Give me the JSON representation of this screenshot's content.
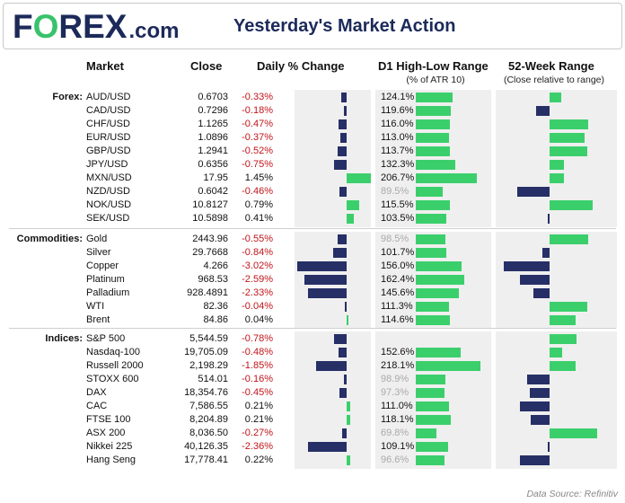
{
  "header": {
    "logo_text": [
      "F",
      "O",
      "REX"
    ],
    "logo_suffix": ".com",
    "title": "Yesterday's Market Action"
  },
  "columns": {
    "market": "Market",
    "close": "Close",
    "daily": "Daily % Change",
    "range": "D1 High-Low Range",
    "range_sub": "(% of ATR 10)",
    "week52": "52-Week Range",
    "week52_sub": "(Close relative to range)"
  },
  "colors": {
    "negative_bar": "#262f66",
    "positive_bar": "#3bcf6c",
    "negative_text": "#c0151b",
    "muted_text": "#aaaaaa",
    "brand": "#1c2a5a"
  },
  "scales": {
    "daily_pct_range": [
      -4,
      2.5
    ],
    "atr_pct_range": [
      0,
      250
    ],
    "week52_range": [
      -1,
      1
    ]
  },
  "chart_data": {
    "type": "table",
    "sections": [
      {
        "name": "Forex:",
        "rows": [
          {
            "market": "AUD/USD",
            "close": "0.6703",
            "change": "-0.33%",
            "change_value": -0.33,
            "range": "124.1%",
            "range_value": 124.1,
            "range_muted": false,
            "w52": 0.22
          },
          {
            "market": "CAD/USD",
            "close": "0.7296",
            "change": "-0.18%",
            "change_value": -0.18,
            "range": "119.6%",
            "range_value": 119.6,
            "range_muted": false,
            "w52": -0.25
          },
          {
            "market": "CHF/USD",
            "close": "1.1265",
            "change": "-0.47%",
            "change_value": -0.47,
            "range": "116.0%",
            "range_value": 116.0,
            "range_muted": false,
            "w52": 0.72
          },
          {
            "market": "EUR/USD",
            "close": "1.0896",
            "change": "-0.37%",
            "change_value": -0.37,
            "range": "113.0%",
            "range_value": 113.0,
            "range_muted": false,
            "w52": 0.65
          },
          {
            "market": "GBP/USD",
            "close": "1.2941",
            "change": "-0.52%",
            "change_value": -0.52,
            "range": "113.7%",
            "range_value": 113.7,
            "range_muted": false,
            "w52": 0.7
          },
          {
            "market": "JPY/USD",
            "close": "0.6356",
            "change": "-0.75%",
            "change_value": -0.75,
            "range": "132.3%",
            "range_value": 132.3,
            "range_muted": false,
            "w52": 0.27
          },
          {
            "market": "MXN/USD",
            "close": "17.95",
            "change": "1.45%",
            "change_value": 1.45,
            "range": "206.7%",
            "range_value": 206.7,
            "range_muted": false,
            "w52": 0.27
          },
          {
            "market": "NZD/USD",
            "close": "0.6042",
            "change": "-0.46%",
            "change_value": -0.46,
            "range": "89.5%",
            "range_value": 89.5,
            "range_muted": true,
            "w52": -0.6
          },
          {
            "market": "NOK/USD",
            "close": "10.8127",
            "change": "0.79%",
            "change_value": 0.79,
            "range": "115.5%",
            "range_value": 115.5,
            "range_muted": false,
            "w52": 0.8
          },
          {
            "market": "SEK/USD",
            "close": "10.5898",
            "change": "0.41%",
            "change_value": 0.41,
            "range": "103.5%",
            "range_value": 103.5,
            "range_muted": false,
            "w52": -0.04
          }
        ]
      },
      {
        "name": "Commodities:",
        "rows": [
          {
            "market": "Gold",
            "close": "2443.96",
            "change": "-0.55%",
            "change_value": -0.55,
            "range": "98.5%",
            "range_value": 98.5,
            "range_muted": true,
            "w52": 0.72
          },
          {
            "market": "Silver",
            "close": "29.7668",
            "change": "-0.84%",
            "change_value": -0.84,
            "range": "101.7%",
            "range_value": 101.7,
            "range_muted": false,
            "w52": -0.14
          },
          {
            "market": "Copper",
            "close": "4.266",
            "change": "-3.02%",
            "change_value": -3.02,
            "range": "156.0%",
            "range_value": 156.0,
            "range_muted": false,
            "w52": -0.85
          },
          {
            "market": "Platinum",
            "close": "968.53",
            "change": "-2.59%",
            "change_value": -2.59,
            "range": "162.4%",
            "range_value": 162.4,
            "range_muted": false,
            "w52": -0.55
          },
          {
            "market": "Palladium",
            "close": "928.4891",
            "change": "-2.33%",
            "change_value": -2.33,
            "range": "145.6%",
            "range_value": 145.6,
            "range_muted": false,
            "w52": -0.3
          },
          {
            "market": "WTI",
            "close": "82.36",
            "change": "-0.04%",
            "change_value": -0.04,
            "range": "111.3%",
            "range_value": 111.3,
            "range_muted": false,
            "w52": 0.7
          },
          {
            "market": "Brent",
            "close": "84.86",
            "change": "0.04%",
            "change_value": 0.04,
            "range": "114.6%",
            "range_value": 114.6,
            "range_muted": false,
            "w52": 0.48
          }
        ]
      },
      {
        "name": "Indices:",
        "rows": [
          {
            "market": "S&P 500",
            "close": "5,544.59",
            "change": "-0.78%",
            "change_value": -0.78,
            "range": "",
            "range_value": 0,
            "range_muted": false,
            "w52": 0.5
          },
          {
            "market": "Nasdaq-100",
            "close": "19,705.09",
            "change": "-0.48%",
            "change_value": -0.48,
            "range": "152.6%",
            "range_value": 152.6,
            "range_muted": false,
            "w52": 0.24
          },
          {
            "market": "Russell 2000",
            "close": "2,198.29",
            "change": "-1.85%",
            "change_value": -1.85,
            "range": "218.1%",
            "range_value": 218.1,
            "range_muted": false,
            "w52": 0.48
          },
          {
            "market": "STOXX 600",
            "close": "514.01",
            "change": "-0.16%",
            "change_value": -0.16,
            "range": "98.9%",
            "range_value": 98.9,
            "range_muted": true,
            "w52": -0.42
          },
          {
            "market": "DAX",
            "close": "18,354.76",
            "change": "-0.45%",
            "change_value": -0.45,
            "range": "97.3%",
            "range_value": 97.3,
            "range_muted": true,
            "w52": -0.37
          },
          {
            "market": "CAC",
            "close": "7,586.55",
            "change": "0.21%",
            "change_value": 0.21,
            "range": "111.0%",
            "range_value": 111.0,
            "range_muted": false,
            "w52": -0.55
          },
          {
            "market": "FTSE 100",
            "close": "8,204.89",
            "change": "0.21%",
            "change_value": 0.21,
            "range": "118.1%",
            "range_value": 118.1,
            "range_muted": false,
            "w52": -0.35
          },
          {
            "market": "ASX 200",
            "close": "8,036.50",
            "change": "-0.27%",
            "change_value": -0.27,
            "range": "69.8%",
            "range_value": 69.8,
            "range_muted": true,
            "w52": 0.88
          },
          {
            "market": "Nikkei 225",
            "close": "40,126.35",
            "change": "-2.36%",
            "change_value": -2.36,
            "range": "109.1%",
            "range_value": 109.1,
            "range_muted": false,
            "w52": -0.02
          },
          {
            "market": "Hang Seng",
            "close": "17,778.41",
            "change": "0.22%",
            "change_value": 0.22,
            "range": "96.6%",
            "range_value": 96.6,
            "range_muted": true,
            "w52": -0.55
          }
        ]
      }
    ]
  },
  "footer": {
    "source": "Data Source: Refinitiv"
  }
}
